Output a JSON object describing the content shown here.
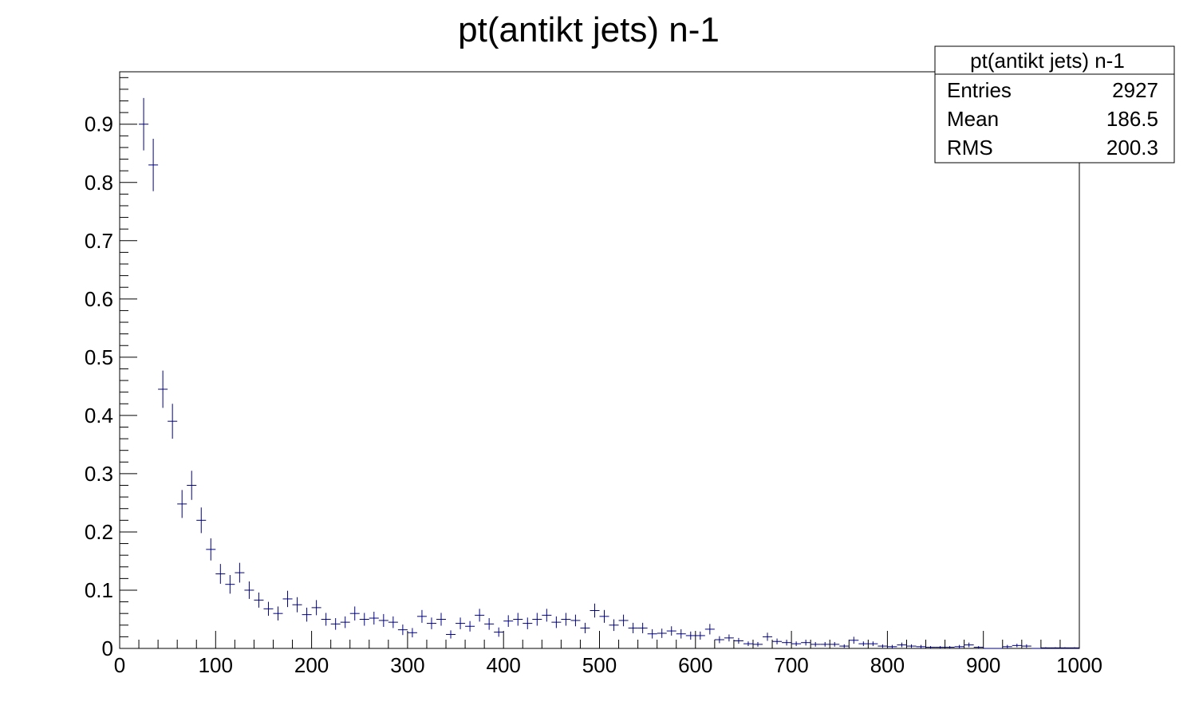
{
  "chart_data": {
    "type": "scatter",
    "style": "histogram-error-bars",
    "title": "pt(antikt jets) n-1",
    "xlabel": "",
    "ylabel": "",
    "xlim": [
      0,
      1000
    ],
    "ylim": [
      0,
      0.99
    ],
    "x_ticks": [
      "0",
      "100",
      "200",
      "300",
      "400",
      "500",
      "600",
      "700",
      "800",
      "900",
      "1000"
    ],
    "y_ticks": [
      "0",
      "0.1",
      "0.2",
      "0.3",
      "0.4",
      "0.5",
      "0.6",
      "0.7",
      "0.8",
      "0.9"
    ],
    "bin_width": 10,
    "series": [
      {
        "name": "pt(antikt jets) n-1",
        "color": "#000080",
        "x": [
          25,
          35,
          45,
          55,
          65,
          75,
          85,
          95,
          105,
          115,
          125,
          135,
          145,
          155,
          165,
          175,
          185,
          195,
          205,
          215,
          225,
          235,
          245,
          255,
          265,
          275,
          285,
          295,
          305,
          315,
          325,
          335,
          345,
          355,
          365,
          375,
          385,
          395,
          405,
          415,
          425,
          435,
          445,
          455,
          465,
          475,
          485,
          495,
          505,
          515,
          525,
          535,
          545,
          555,
          565,
          575,
          585,
          595,
          605,
          615,
          625,
          635,
          645,
          655,
          665,
          675,
          685,
          695,
          705,
          715,
          725,
          735,
          745,
          755,
          765,
          775,
          785,
          795,
          805,
          815,
          825,
          835,
          845,
          855,
          865,
          875,
          885,
          895,
          905,
          915,
          925,
          935,
          945,
          955,
          965,
          975,
          985,
          995
        ],
        "y": [
          0.9,
          0.83,
          0.445,
          0.39,
          0.248,
          0.28,
          0.22,
          0.17,
          0.128,
          0.11,
          0.13,
          0.1,
          0.083,
          0.068,
          0.06,
          0.085,
          0.075,
          0.058,
          0.07,
          0.05,
          0.042,
          0.045,
          0.06,
          0.05,
          0.052,
          0.048,
          0.045,
          0.032,
          0.027,
          0.055,
          0.043,
          0.05,
          0.024,
          0.043,
          0.038,
          0.057,
          0.042,
          0.028,
          0.047,
          0.05,
          0.043,
          0.05,
          0.057,
          0.045,
          0.05,
          0.048,
          0.035,
          0.065,
          0.055,
          0.04,
          0.048,
          0.035,
          0.035,
          0.025,
          0.026,
          0.03,
          0.025,
          0.022,
          0.022,
          0.033,
          0.015,
          0.018,
          0.013,
          0.008,
          0.007,
          0.02,
          0.012,
          0.01,
          0.008,
          0.01,
          0.007,
          0.007,
          0.007,
          0.004,
          0.014,
          0.008,
          0.008,
          0.004,
          0.003,
          0.006,
          0.004,
          0.003,
          0.002,
          0.002,
          0.002,
          0.003,
          0.006,
          0.002,
          0.0,
          0.0,
          0.003,
          0.005,
          0.004,
          0.0,
          0.001,
          0.001,
          0.001,
          0.001
        ],
        "err": [
          0.045,
          0.045,
          0.032,
          0.03,
          0.024,
          0.025,
          0.022,
          0.019,
          0.017,
          0.016,
          0.017,
          0.015,
          0.013,
          0.012,
          0.012,
          0.014,
          0.013,
          0.012,
          0.013,
          0.011,
          0.01,
          0.01,
          0.012,
          0.011,
          0.011,
          0.011,
          0.01,
          0.009,
          0.008,
          0.011,
          0.01,
          0.011,
          0.007,
          0.01,
          0.009,
          0.011,
          0.01,
          0.008,
          0.01,
          0.011,
          0.01,
          0.011,
          0.011,
          0.01,
          0.011,
          0.01,
          0.009,
          0.012,
          0.011,
          0.01,
          0.01,
          0.009,
          0.009,
          0.008,
          0.008,
          0.008,
          0.008,
          0.007,
          0.007,
          0.009,
          0.006,
          0.006,
          0.005,
          0.004,
          0.004,
          0.007,
          0.005,
          0.005,
          0.004,
          0.005,
          0.004,
          0.004,
          0.004,
          0.003,
          0.006,
          0.004,
          0.004,
          0.003,
          0.003,
          0.004,
          0.003,
          0.003,
          0.002,
          0.002,
          0.002,
          0.003,
          0.004,
          0.002,
          0.0,
          0.0,
          0.003,
          0.003,
          0.003,
          0.0,
          0.001,
          0.001,
          0.001,
          0.001
        ]
      }
    ],
    "legend_position": "top-right"
  },
  "stats_box": {
    "title": "pt(antikt jets) n-1",
    "rows": [
      {
        "label": "Entries",
        "value": "2927"
      },
      {
        "label": "Mean",
        "value": "186.5"
      },
      {
        "label": "RMS",
        "value": "200.3"
      }
    ]
  },
  "colors": {
    "marker": "#000080",
    "axis": "#000000",
    "background": "#ffffff"
  }
}
